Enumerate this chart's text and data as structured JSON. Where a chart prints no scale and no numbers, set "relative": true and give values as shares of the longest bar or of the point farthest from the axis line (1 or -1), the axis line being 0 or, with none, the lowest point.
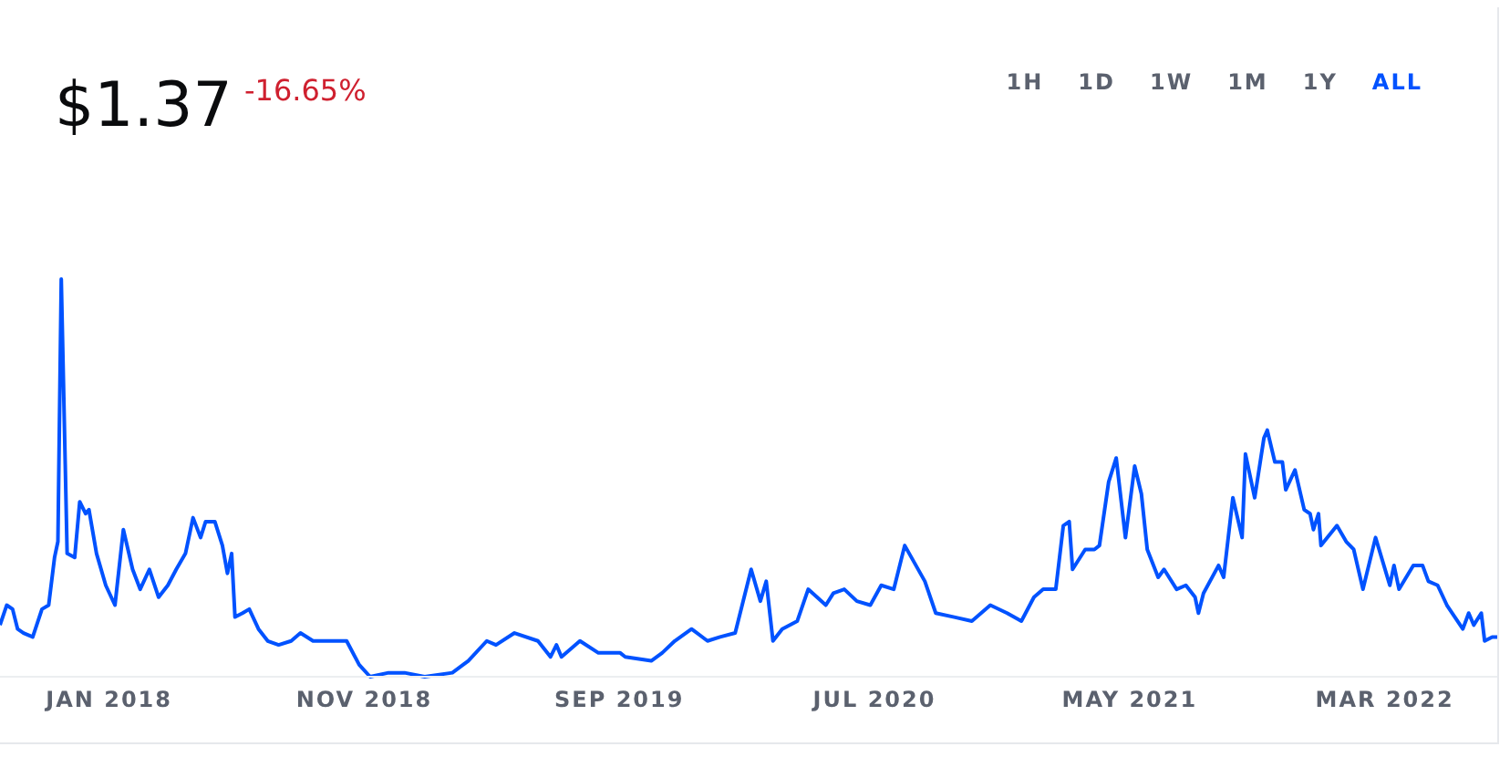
{
  "chart_data": {
    "type": "line",
    "title": "$1.37",
    "subtitle": "-16.65%",
    "annotations": [
      "1H",
      "1D",
      "1W",
      "1M",
      "1Y",
      "ALL"
    ],
    "relative": true,
    "xlim": [
      "2017-08-24",
      "2022-07-13"
    ],
    "xticks": [
      {
        "value": "2018-01-01",
        "label": "JAN 2018"
      },
      {
        "value": "2018-11-01",
        "label": "NOV 2018"
      },
      {
        "value": "2019-09-01",
        "label": "SEP 2019"
      },
      {
        "value": "2020-07-01",
        "label": "JUL 2020"
      },
      {
        "value": "2021-05-01",
        "label": "MAY 2021"
      },
      {
        "value": "2022-03-01",
        "label": "MAR 2022"
      }
    ],
    "x": [
      "2017-08-24",
      "2017-09-01",
      "2017-09-08",
      "2017-09-14",
      "2017-09-21",
      "2017-10-02",
      "2017-10-13",
      "2017-10-21",
      "2017-10-28",
      "2017-11-01",
      "2017-11-05",
      "2017-11-12",
      "2017-11-21",
      "2017-11-27",
      "2017-12-04",
      "2017-12-08",
      "2017-12-17",
      "2017-12-28",
      "2018-01-08",
      "2018-01-18",
      "2018-01-29",
      "2018-02-07",
      "2018-02-18",
      "2018-03-01",
      "2018-03-12",
      "2018-03-22",
      "2018-04-02",
      "2018-04-11",
      "2018-04-20",
      "2018-04-26",
      "2018-05-07",
      "2018-05-16",
      "2018-05-22",
      "2018-05-27",
      "2018-05-31",
      "2018-06-09",
      "2018-06-17",
      "2018-06-28",
      "2018-07-09",
      "2018-07-22",
      "2018-08-06",
      "2018-08-17",
      "2018-09-01",
      "2018-09-19",
      "2018-10-11",
      "2018-10-26",
      "2018-11-08",
      "2018-11-30",
      "2018-12-19",
      "2019-01-12",
      "2019-02-14",
      "2019-03-05",
      "2019-03-27",
      "2019-04-07",
      "2019-04-29",
      "2019-05-27",
      "2019-06-11",
      "2019-06-18",
      "2019-06-24",
      "2019-07-16",
      "2019-08-07",
      "2019-09-02",
      "2019-09-08",
      "2019-10-09",
      "2019-10-22",
      "2019-11-06",
      "2019-11-26",
      "2019-12-15",
      "2019-12-30",
      "2020-01-17",
      "2020-02-05",
      "2020-02-16",
      "2020-02-23",
      "2020-03-02",
      "2020-03-13",
      "2020-03-31",
      "2020-04-13",
      "2020-05-04",
      "2020-05-13",
      "2020-05-26",
      "2020-06-10",
      "2020-06-26",
      "2020-07-09",
      "2020-07-24",
      "2020-08-06",
      "2020-08-30",
      "2020-09-12",
      "2020-10-04",
      "2020-10-25",
      "2020-11-16",
      "2020-12-06",
      "2020-12-23",
      "2021-01-07",
      "2021-01-18",
      "2021-02-02",
      "2021-02-11",
      "2021-02-18",
      "2021-02-22",
      "2021-03-09",
      "2021-03-20",
      "2021-03-26",
      "2021-04-06",
      "2021-04-15",
      "2021-04-26",
      "2021-05-07",
      "2021-05-15",
      "2021-05-22",
      "2021-06-04",
      "2021-06-11",
      "2021-06-26",
      "2021-07-07",
      "2021-07-18",
      "2021-07-22",
      "2021-07-28",
      "2021-08-15",
      "2021-08-21",
      "2021-09-01",
      "2021-09-12",
      "2021-09-16",
      "2021-09-27",
      "2021-10-08",
      "2021-10-12",
      "2021-10-21",
      "2021-10-30",
      "2021-11-03",
      "2021-11-14",
      "2021-11-25",
      "2021-12-02",
      "2021-12-06",
      "2021-12-12",
      "2021-12-15",
      "2022-01-03",
      "2022-01-14",
      "2022-01-23",
      "2022-02-03",
      "2022-02-18",
      "2022-03-07",
      "2022-03-12",
      "2022-03-18",
      "2022-04-04",
      "2022-04-15",
      "2022-04-22",
      "2022-05-03",
      "2022-05-14",
      "2022-06-02",
      "2022-06-09",
      "2022-06-15",
      "2022-06-24",
      "2022-06-28",
      "2022-07-07",
      "2022-07-13"
    ],
    "series": [
      {
        "color": "#0052ff",
        "values": [
          0.13,
          0.18,
          0.17,
          0.12,
          0.11,
          0.1,
          0.17,
          0.18,
          0.3,
          0.34,
          1,
          0.31,
          0.3,
          0.44,
          0.41,
          0.42,
          0.31,
          0.23,
          0.18,
          0.37,
          0.27,
          0.22,
          0.27,
          0.2,
          0.23,
          0.27,
          0.31,
          0.4,
          0.35,
          0.39,
          0.39,
          0.33,
          0.26,
          0.31,
          0.15,
          0.16,
          0.17,
          0.12,
          0.09,
          0.08,
          0.09,
          0.11,
          0.09,
          0.09,
          0.09,
          0.03,
          0,
          0.01,
          0.01,
          0.0,
          0.01,
          0.04,
          0.09,
          0.08,
          0.11,
          0.09,
          0.05,
          0.08,
          0.05,
          0.09,
          0.06,
          0.06,
          0.05,
          0.04,
          0.06,
          0.09,
          0.12,
          0.09,
          0.1,
          0.11,
          0.27,
          0.19,
          0.24,
          0.09,
          0.12,
          0.14,
          0.22,
          0.18,
          0.21,
          0.22,
          0.19,
          0.18,
          0.23,
          0.22,
          0.33,
          0.24,
          0.16,
          0.15,
          0.14,
          0.18,
          0.16,
          0.14,
          0.2,
          0.22,
          0.22,
          0.38,
          0.39,
          0.27,
          0.32,
          0.32,
          0.33,
          0.49,
          0.55,
          0.35,
          0.53,
          0.46,
          0.32,
          0.25,
          0.27,
          0.22,
          0.23,
          0.2,
          0.16,
          0.21,
          0.28,
          0.25,
          0.45,
          0.35,
          0.56,
          0.45,
          0.6,
          0.62,
          0.54,
          0.54,
          0.47,
          0.52,
          0.42,
          0.41,
          0.37,
          0.41,
          0.33,
          0.38,
          0.34,
          0.32,
          0.22,
          0.35,
          0.23,
          0.28,
          0.22,
          0.28,
          0.28,
          0.24,
          0.23,
          0.18,
          0.12,
          0.16,
          0.13,
          0.16,
          0.09,
          0.1,
          0.1
        ]
      }
    ]
  }
}
